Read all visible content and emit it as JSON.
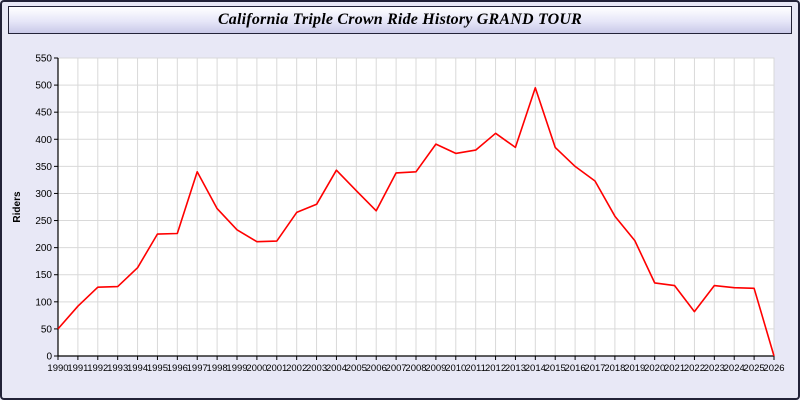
{
  "header": {
    "title": "California Triple Crown Ride History GRAND TOUR"
  },
  "chart_data": {
    "type": "line",
    "title": "California Triple Crown Ride History GRAND TOUR",
    "xlabel": "",
    "ylabel": "Riders",
    "ylim": [
      0,
      550
    ],
    "ytick_step": 50,
    "grid": true,
    "legend_position": "none",
    "line_color": "#ff0000",
    "plot_background": "#ffffff",
    "grid_color": "#d9d9d9",
    "x": [
      1990,
      1991,
      1992,
      1993,
      1994,
      1995,
      1996,
      1997,
      1998,
      1999,
      2000,
      2001,
      2002,
      2003,
      2004,
      2005,
      2006,
      2007,
      2008,
      2009,
      2010,
      2011,
      2012,
      2013,
      2014,
      2015,
      2016,
      2017,
      2018,
      2019,
      2020,
      2021,
      2022,
      2023,
      2024,
      2025,
      2026
    ],
    "series": [
      {
        "name": "Riders",
        "values": [
          50,
          92,
          127,
          128,
          163,
          225,
          226,
          340,
          272,
          233,
          211,
          212,
          265,
          280,
          343,
          305,
          268,
          338,
          340,
          391,
          374,
          380,
          411,
          385,
          495,
          385,
          350,
          323,
          258,
          213,
          135,
          130,
          82,
          130,
          126,
          125,
          0
        ]
      }
    ]
  }
}
